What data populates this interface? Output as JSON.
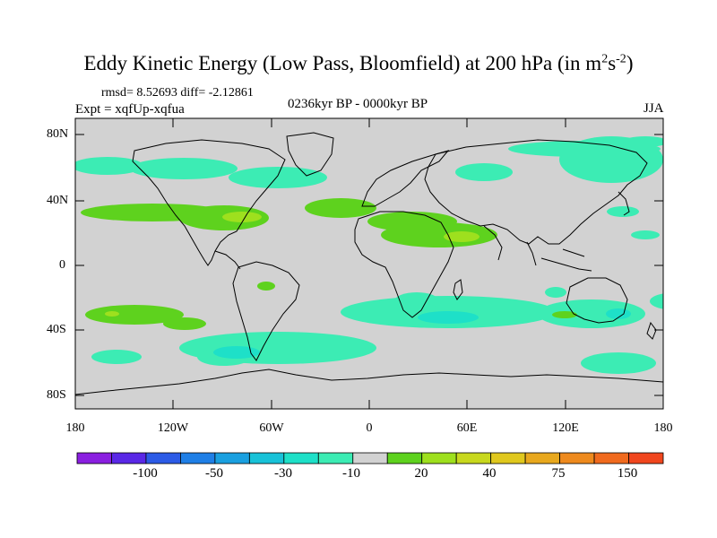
{
  "title": {
    "main": "Eddy Kinetic Energy (Low Pass, Bloomfield) at 200 hPa (in m",
    "sup1": "2",
    "mid": "s",
    "sup2": "-2",
    "end": ")"
  },
  "stats": "rmsd= 8.52693 diff= -2.12861",
  "experiment": "Expt = xqfUp-xqfua",
  "period": "0236kyr BP - 0000kyr BP",
  "season": "JJA",
  "map": {
    "background_color": "#d2d2d2",
    "y_ticks": [
      "80N",
      "40N",
      "0",
      "40S",
      "80S"
    ],
    "x_ticks": [
      "180",
      "120W",
      "60W",
      "0",
      "60E",
      "120E",
      "180"
    ]
  },
  "colorbar": {
    "colors": [
      "#8a1fe0",
      "#5a28e6",
      "#2c5be6",
      "#1f7fe6",
      "#1aa0e0",
      "#18c2d8",
      "#1ee0c8",
      "#3cecb4",
      "#d2d2d2",
      "#5ed21e",
      "#9ee01e",
      "#c8d81e",
      "#e0c81e",
      "#e8a81e",
      "#ee8a1e",
      "#f06a1e",
      "#f0461e"
    ],
    "labels": [
      "-100",
      "-50",
      "-30",
      "-10",
      "20",
      "40",
      "75",
      "150"
    ]
  }
}
